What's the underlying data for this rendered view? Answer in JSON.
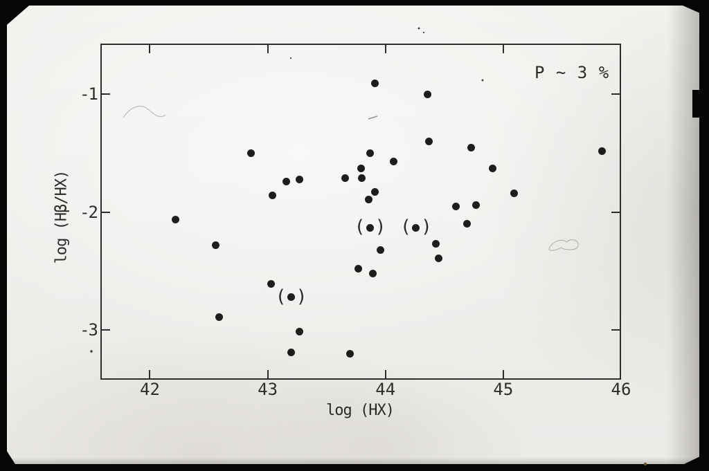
{
  "figure": {
    "annotation": "P ~ 3 %"
  },
  "colors": {
    "ink": "#2d2d2d",
    "marker": "#1e1d1c",
    "paper": "#f2f1ee",
    "photo_background": "#060606"
  },
  "chart_data": {
    "type": "scatter",
    "title": "",
    "annotation": "P ~ 3 %",
    "xlabel": "log (HX)",
    "ylabel": "log (Hβ/HX)",
    "xlim": [
      41.58,
      46.0
    ],
    "ylim": [
      -3.42,
      -0.57
    ],
    "x_ticks": [
      42,
      43,
      44,
      45,
      46
    ],
    "x_tick_labels": [
      "42",
      "43",
      "44",
      "45",
      "46"
    ],
    "y_ticks": [
      -1,
      -2,
      -3
    ],
    "y_tick_labels": [
      "-1",
      "-2",
      "-3"
    ],
    "grid": false,
    "legend": false,
    "series": [
      {
        "name": "measured points",
        "marker": "filled-circle",
        "points": [
          [
            42.22,
            -2.06
          ],
          [
            42.56,
            -2.28
          ],
          [
            42.59,
            -2.89
          ],
          [
            42.86,
            -1.5
          ],
          [
            43.03,
            -2.61
          ],
          [
            43.04,
            -1.86
          ],
          [
            43.16,
            -1.74
          ],
          [
            43.2,
            -3.19
          ],
          [
            43.27,
            -1.72
          ],
          [
            43.27,
            -3.01
          ],
          [
            43.66,
            -1.71
          ],
          [
            43.7,
            -3.2
          ],
          [
            43.77,
            -2.48
          ],
          [
            43.79,
            -1.63
          ],
          [
            43.8,
            -1.71
          ],
          [
            43.86,
            -1.89
          ],
          [
            43.87,
            -1.5
          ],
          [
            43.89,
            -2.52
          ],
          [
            43.91,
            -0.91
          ],
          [
            43.91,
            -1.83
          ],
          [
            43.96,
            -2.32
          ],
          [
            44.07,
            -1.57
          ],
          [
            44.36,
            -1.0
          ],
          [
            44.37,
            -1.4
          ],
          [
            44.43,
            -2.27
          ],
          [
            44.45,
            -2.39
          ],
          [
            44.6,
            -1.95
          ],
          [
            44.69,
            -2.1
          ],
          [
            44.73,
            -1.45
          ],
          [
            44.77,
            -1.94
          ],
          [
            44.91,
            -1.63
          ],
          [
            45.09,
            -1.84
          ],
          [
            45.84,
            -1.48
          ]
        ]
      },
      {
        "name": "parenthesized (uncertain) points",
        "marker": "filled-circle-in-parentheses",
        "paren_open": "(",
        "paren_close": ")",
        "points": [
          [
            43.2,
            -2.72
          ],
          [
            43.87,
            -2.13
          ],
          [
            44.26,
            -2.13
          ]
        ]
      }
    ]
  }
}
